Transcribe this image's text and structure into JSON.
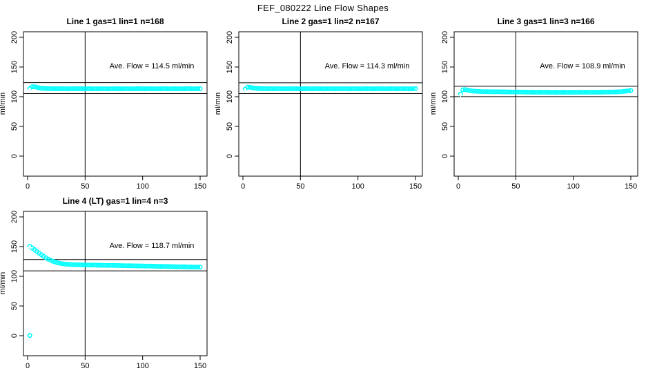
{
  "figure_title": "FEF_080222  Line Flow Shapes",
  "colors": {
    "points": "#00ffff",
    "axis": "#000000",
    "background": "#ffffff",
    "marker_center": "#ffffff"
  },
  "axes": {
    "ylabel": "ml/min",
    "y_ticks": [
      0,
      50,
      100,
      150,
      200
    ],
    "x_ticks": [
      0,
      50,
      100,
      150
    ],
    "y_range": [
      -34,
      210
    ],
    "x_range": [
      -4,
      156
    ],
    "vline_x": 50,
    "grid": "off"
  },
  "chart_data": {
    "type": "scatter",
    "layout": "2 rows x 3 cols, 4 panels used",
    "panels": [
      {
        "title": "Line 1 gas=1 lin=1 n=168",
        "annotation": "Ave. Flow =  114.5  ml/min",
        "ave_flow": 114.5,
        "band_lines": [
          105.3,
          123.7
        ],
        "x0": 2,
        "dx": 2,
        "y": [
          113.8,
          116.8,
          116.9,
          115.8,
          114.8,
          114.2,
          113.9,
          113.7,
          113.6,
          113.5,
          113.5,
          113.4,
          113.5,
          113.4,
          113.4,
          113.5,
          113.4,
          113.3,
          113.4,
          113.5,
          113.4,
          113.4,
          113.5,
          113.4,
          113.3,
          113.4,
          113.5,
          113.4,
          113.4,
          113.3,
          113.4,
          113.5,
          113.4,
          113.4,
          113.3,
          113.4,
          113.4,
          113.5,
          113.4,
          113.3,
          113.4,
          113.4,
          113.5,
          113.4,
          113.4,
          113.3,
          113.4,
          113.5,
          113.4,
          113.4,
          113.3,
          113.4,
          113.4,
          113.5,
          113.4,
          113.3,
          113.4,
          113.4,
          113.5,
          113.4,
          113.4,
          113.3,
          113.4,
          113.5,
          113.4,
          113.4,
          113.3,
          113.4,
          113.4,
          113.5,
          113.4,
          113.3,
          113.4,
          113.4,
          113.5
        ],
        "extra_points": []
      },
      {
        "title": "Line 2 gas=1 lin=2 n=167",
        "annotation": "Ave. Flow =  114.3  ml/min",
        "ave_flow": 114.3,
        "band_lines": [
          105.2,
          123.4
        ],
        "x0": 2,
        "dx": 2,
        "y": [
          112.8,
          116.2,
          116.0,
          115.1,
          114.5,
          114.1,
          113.8,
          113.6,
          113.5,
          113.5,
          113.5,
          113.4,
          113.5,
          113.4,
          113.4,
          113.5,
          113.4,
          113.3,
          113.4,
          113.5,
          113.4,
          113.4,
          113.5,
          113.4,
          113.3,
          113.4,
          113.5,
          113.4,
          113.4,
          113.3,
          113.4,
          113.5,
          113.4,
          113.4,
          113.3,
          113.4,
          113.4,
          113.5,
          113.4,
          113.3,
          113.4,
          113.4,
          113.5,
          113.4,
          113.4,
          113.3,
          113.4,
          113.5,
          113.4,
          113.4,
          113.3,
          113.4,
          113.4,
          113.5,
          113.4,
          113.3,
          113.4,
          113.4,
          113.5,
          113.4,
          113.4,
          113.3,
          113.4,
          113.5,
          113.4,
          113.4,
          113.3,
          113.4,
          113.4,
          113.5,
          113.4,
          113.3,
          113.4,
          113.4,
          113.5
        ],
        "extra_points": []
      },
      {
        "title": "Line 3 gas=1 lin=3 n=166",
        "annotation": "Ave. Flow =  108.9  ml/min",
        "ave_flow": 108.9,
        "band_lines": [
          100.2,
          117.6
        ],
        "x0": 2,
        "dx": 2,
        "y": [
          104.5,
          111.6,
          112.0,
          111.2,
          110.3,
          109.7,
          109.3,
          109.0,
          108.8,
          108.6,
          108.5,
          108.5,
          108.4,
          108.4,
          108.3,
          108.3,
          108.2,
          108.2,
          108.1,
          108.1,
          108.0,
          108.0,
          107.9,
          107.9,
          107.9,
          107.8,
          107.8,
          107.8,
          107.7,
          107.7,
          107.7,
          107.6,
          107.6,
          107.6,
          107.5,
          107.5,
          107.5,
          107.5,
          107.4,
          107.4,
          107.4,
          107.4,
          107.4,
          107.4,
          107.4,
          107.4,
          107.4,
          107.4,
          107.4,
          107.4,
          107.5,
          107.4,
          107.5,
          107.4,
          107.5,
          107.5,
          107.4,
          107.5,
          107.5,
          107.6,
          107.6,
          107.6,
          107.7,
          107.7,
          107.8,
          107.8,
          107.9,
          108.0,
          108.1,
          108.2,
          108.5,
          108.9,
          109.4,
          109.9,
          110.4
        ],
        "extra_points": []
      },
      {
        "title": "Line 4 (LT) gas=1 lin=4 n=3",
        "annotation": "Ave. Flow =  118.7  ml/min",
        "ave_flow": 118.7,
        "band_lines": [
          109.2,
          128.2
        ],
        "x0": 2,
        "dx": 2,
        "y": [
          150.5,
          147.6,
          144.8,
          141.9,
          139.0,
          136.2,
          133.5,
          131.0,
          128.8,
          126.9,
          125.3,
          123.9,
          122.8,
          121.9,
          121.2,
          120.7,
          120.3,
          120.0,
          119.8,
          119.6,
          119.5,
          119.4,
          119.3,
          119.2,
          119.1,
          119.0,
          118.9,
          118.9,
          118.8,
          118.7,
          118.6,
          118.6,
          118.5,
          118.4,
          118.4,
          118.3,
          118.2,
          118.2,
          118.1,
          118.0,
          117.9,
          117.9,
          117.8,
          117.7,
          117.7,
          117.6,
          117.5,
          117.5,
          117.4,
          117.3,
          117.2,
          117.2,
          117.1,
          117.0,
          117.0,
          116.9,
          116.8,
          116.7,
          116.7,
          116.6,
          116.5,
          116.4,
          116.3,
          116.2,
          116.1,
          116.0,
          115.9,
          115.9,
          115.8,
          115.7,
          115.7,
          115.6,
          115.6,
          115.5,
          115.5
        ],
        "extra_points": [
          [
            2,
            0.5
          ]
        ]
      }
    ]
  }
}
